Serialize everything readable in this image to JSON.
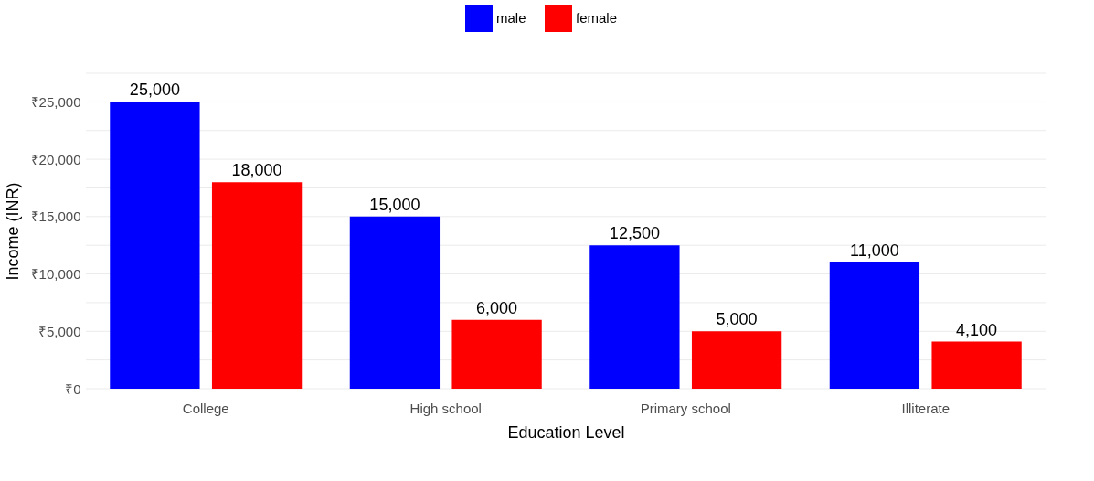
{
  "chart_data": {
    "type": "bar",
    "xlabel": "Education Level",
    "ylabel": "Income (INR)",
    "categories": [
      "College",
      "High school",
      "Primary school",
      "Illiterate"
    ],
    "series": [
      {
        "name": "male",
        "color": "#0000ff",
        "values": [
          25000,
          15000,
          12500,
          11000
        ],
        "value_labels": [
          "25,000",
          "15,000",
          "12,500",
          "11,000"
        ]
      },
      {
        "name": "female",
        "color": "#ff0000",
        "values": [
          18000,
          6000,
          5000,
          4100
        ],
        "value_labels": [
          "18,000",
          "6,000",
          "5,000",
          "4,100"
        ]
      }
    ],
    "ylim": [
      0,
      27500
    ],
    "yticks": [
      {
        "value": 0,
        "label": "₹0"
      },
      {
        "value": 2500,
        "label": null
      },
      {
        "value": 5000,
        "label": "₹5,000"
      },
      {
        "value": 7500,
        "label": null
      },
      {
        "value": 10000,
        "label": "₹10,000"
      },
      {
        "value": 12500,
        "label": null
      },
      {
        "value": 15000,
        "label": "₹15,000"
      },
      {
        "value": 17500,
        "label": null
      },
      {
        "value": 20000,
        "label": "₹20,000"
      },
      {
        "value": 22500,
        "label": null
      },
      {
        "value": 25000,
        "label": "₹25,000"
      },
      {
        "value": 27500,
        "label": null
      }
    ],
    "grid": "y",
    "legend": "top"
  }
}
